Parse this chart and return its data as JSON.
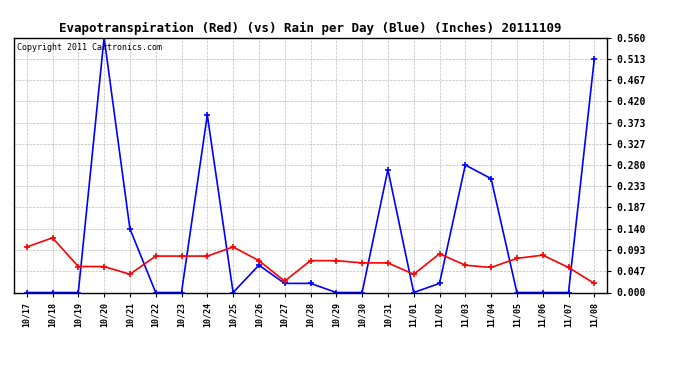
{
  "title": "Evapotranspiration (Red) (vs) Rain per Day (Blue) (Inches) 20111109",
  "copyright": "Copyright 2011 Cartronics.com",
  "x_labels": [
    "10/17",
    "10/18",
    "10/19",
    "10/20",
    "10/21",
    "10/22",
    "10/23",
    "10/24",
    "10/25",
    "10/26",
    "10/27",
    "10/28",
    "10/29",
    "10/30",
    "10/31",
    "11/01",
    "11/02",
    "11/03",
    "11/04",
    "11/05",
    "11/06",
    "11/07",
    "11/08"
  ],
  "blue_data": [
    0.0,
    0.0,
    0.0,
    0.56,
    0.14,
    0.0,
    0.0,
    0.39,
    0.0,
    0.06,
    0.02,
    0.02,
    0.0,
    0.0,
    0.27,
    0.0,
    0.02,
    0.28,
    0.25,
    0.0,
    0.0,
    0.0,
    0.513
  ],
  "red_data": [
    0.1,
    0.12,
    0.057,
    0.057,
    0.04,
    0.08,
    0.08,
    0.08,
    0.1,
    0.07,
    0.025,
    0.07,
    0.07,
    0.065,
    0.065,
    0.04,
    0.085,
    0.06,
    0.055,
    0.075,
    0.082,
    0.055,
    0.02
  ],
  "ylim": [
    0.0,
    0.56
  ],
  "yticks": [
    0.0,
    0.047,
    0.093,
    0.14,
    0.187,
    0.233,
    0.28,
    0.327,
    0.373,
    0.42,
    0.467,
    0.513,
    0.56
  ],
  "blue_color": "#0000ff",
  "red_color": "#ff0000",
  "bg_color": "#ffffff",
  "plot_bg_color": "#ffffff",
  "grid_color": "#bbbbbb",
  "title_fontsize": 9,
  "copyright_fontsize": 6
}
